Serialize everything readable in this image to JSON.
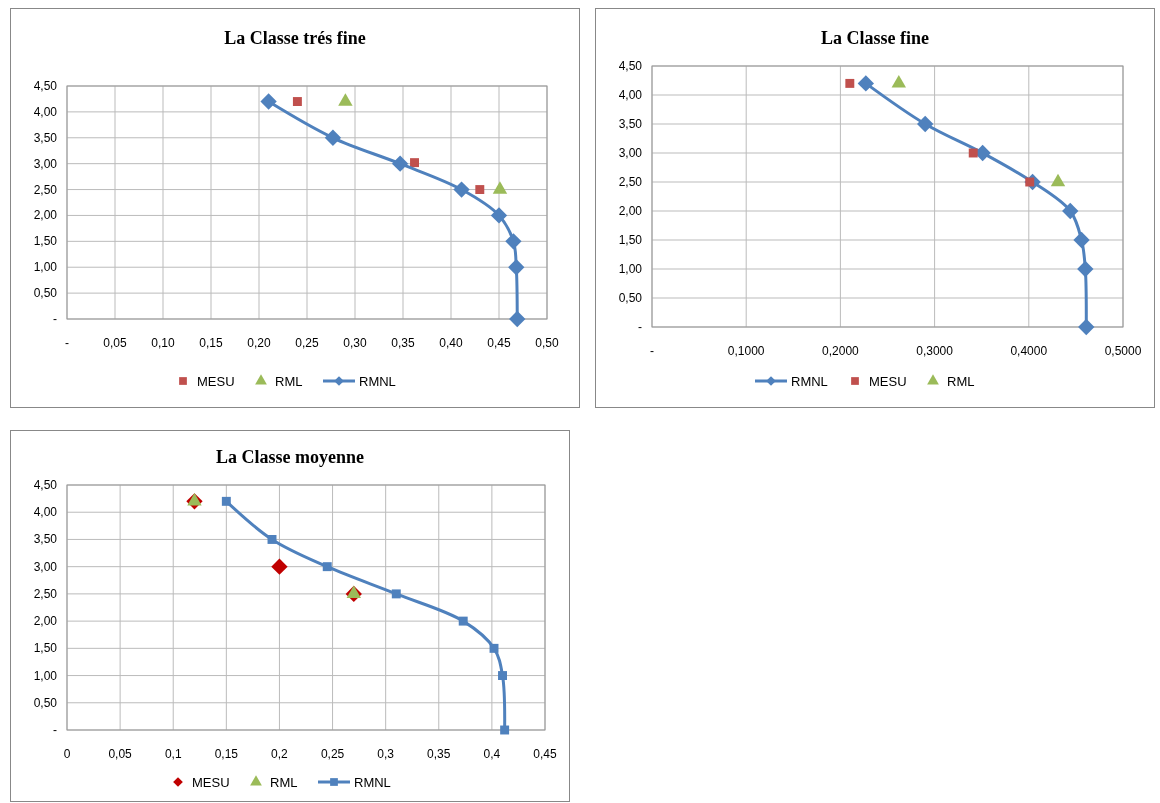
{
  "chart_data": [
    {
      "type": "scatter",
      "title": "La Classe trés fine",
      "xlim": [
        0,
        0.5
      ],
      "ylim": [
        0,
        4.5
      ],
      "xticks": [
        {
          "value": 0,
          "label": "-"
        },
        {
          "value": 0.05,
          "label": "0,05"
        },
        {
          "value": 0.1,
          "label": "0,10"
        },
        {
          "value": 0.15,
          "label": "0,15"
        },
        {
          "value": 0.2,
          "label": "0,20"
        },
        {
          "value": 0.25,
          "label": "0,25"
        },
        {
          "value": 0.3,
          "label": "0,30"
        },
        {
          "value": 0.35,
          "label": "0,35"
        },
        {
          "value": 0.4,
          "label": "0,40"
        },
        {
          "value": 0.45,
          "label": "0,45"
        },
        {
          "value": 0.5,
          "label": "0,50"
        }
      ],
      "yticks": [
        {
          "value": 0,
          "label": "-"
        },
        {
          "value": 0.5,
          "label": "0,50"
        },
        {
          "value": 1,
          "label": "1,00"
        },
        {
          "value": 1.5,
          "label": "1,50"
        },
        {
          "value": 2,
          "label": "2,00"
        },
        {
          "value": 2.5,
          "label": "2,50"
        },
        {
          "value": 3,
          "label": "3,00"
        },
        {
          "value": 3.5,
          "label": "3,50"
        },
        {
          "value": 4,
          "label": "4,00"
        },
        {
          "value": 4.5,
          "label": "4,50"
        }
      ],
      "grid": true,
      "legend": "bottom",
      "series": [
        {
          "name": "MESU",
          "marker": "square",
          "color": "#c0504d",
          "x": [
            0.24,
            0.362,
            0.43
          ],
          "values": [
            4.2,
            3.02,
            2.5
          ]
        },
        {
          "name": "RML",
          "marker": "triangle",
          "color": "#9bbb59",
          "x": [
            0.29,
            0.451
          ],
          "values": [
            4.2,
            2.5
          ]
        },
        {
          "name": "RMNL",
          "type": "line",
          "marker": "diamond",
          "color": "#4f81bd",
          "x": [
            0.21,
            0.277,
            0.347,
            0.411,
            0.45,
            0.465,
            0.468,
            0.469
          ],
          "values": [
            4.2,
            3.5,
            3.0,
            2.5,
            2.0,
            1.5,
            1.0,
            0
          ]
        }
      ]
    },
    {
      "type": "scatter",
      "title": "La Classe fine",
      "xlim": [
        0,
        0.5
      ],
      "ylim": [
        0,
        4.5
      ],
      "xticks": [
        {
          "value": 0,
          "label": "-"
        },
        {
          "value": 0.1,
          "label": "0,1000"
        },
        {
          "value": 0.2,
          "label": "0,2000"
        },
        {
          "value": 0.3,
          "label": "0,3000"
        },
        {
          "value": 0.4,
          "label": "0,4000"
        },
        {
          "value": 0.5,
          "label": "0,5000"
        }
      ],
      "yticks": [
        {
          "value": 0,
          "label": "-"
        },
        {
          "value": 0.5,
          "label": "0,50"
        },
        {
          "value": 1,
          "label": "1,00"
        },
        {
          "value": 1.5,
          "label": "1,50"
        },
        {
          "value": 2,
          "label": "2,00"
        },
        {
          "value": 2.5,
          "label": "2,50"
        },
        {
          "value": 3,
          "label": "3,00"
        },
        {
          "value": 3.5,
          "label": "3,50"
        },
        {
          "value": 4,
          "label": "4,00"
        },
        {
          "value": 4.5,
          "label": "4,50"
        }
      ],
      "grid": true,
      "legend": "bottom",
      "series": [
        {
          "name": "RMNL",
          "type": "line",
          "marker": "diamond",
          "color": "#4f81bd",
          "x": [
            0.227,
            0.29,
            0.351,
            0.404,
            0.444,
            0.456,
            0.46,
            0.461
          ],
          "values": [
            4.2,
            3.5,
            3.0,
            2.5,
            2.0,
            1.5,
            1.0,
            0
          ]
        },
        {
          "name": "MESU",
          "marker": "square",
          "color": "#c0504d",
          "x": [
            0.21,
            0.341,
            0.401
          ],
          "values": [
            4.2,
            3.0,
            2.5
          ]
        },
        {
          "name": "RML",
          "marker": "triangle",
          "color": "#9bbb59",
          "x": [
            0.262,
            0.431
          ],
          "values": [
            4.2,
            2.5
          ]
        }
      ]
    },
    {
      "type": "scatter",
      "title": "La Classe moyenne",
      "xlim": [
        0,
        0.45
      ],
      "ylim": [
        0,
        4.5
      ],
      "xticks": [
        0,
        {
          "value": 0.05,
          "label": "0,05"
        },
        {
          "value": 0.1,
          "label": "0,1"
        },
        {
          "value": 0.15,
          "label": "0,15"
        },
        {
          "value": 0.2,
          "label": "0,2"
        },
        {
          "value": 0.25,
          "label": "0,25"
        },
        {
          "value": 0.3,
          "label": "0,3"
        },
        {
          "value": 0.35,
          "label": "0,35"
        },
        {
          "value": 0.4,
          "label": "0,4"
        },
        {
          "value": 0.45,
          "label": "0,45"
        }
      ],
      "yticks": [
        {
          "value": 0,
          "label": "-"
        },
        {
          "value": 0.5,
          "label": "0,50"
        },
        {
          "value": 1,
          "label": "1,00"
        },
        {
          "value": 1.5,
          "label": "1,50"
        },
        {
          "value": 2,
          "label": "2,00"
        },
        {
          "value": 2.5,
          "label": "2,50"
        },
        {
          "value": 3,
          "label": "3,00"
        },
        {
          "value": 3.5,
          "label": "3,50"
        },
        {
          "value": 4,
          "label": "4,00"
        },
        {
          "value": 4.5,
          "label": "4,50"
        }
      ],
      "grid": true,
      "legend": "bottom",
      "series": [
        {
          "name": "MESU",
          "marker": "diamond",
          "color": "#c00000",
          "x": [
            0.12,
            0.2,
            0.27
          ],
          "values": [
            4.2,
            3.0,
            2.5
          ]
        },
        {
          "name": "RML",
          "marker": "triangle",
          "color": "#9bbb59",
          "x": [
            0.12,
            0.27
          ],
          "values": [
            4.2,
            2.5
          ]
        },
        {
          "name": "RMNL",
          "type": "line",
          "marker": "square",
          "color": "#4f81bd",
          "x": [
            0.15,
            0.193,
            0.245,
            0.31,
            0.373,
            0.402,
            0.41,
            0.412
          ],
          "values": [
            4.2,
            3.5,
            3.0,
            2.5,
            2.0,
            1.5,
            1.0,
            0
          ]
        }
      ]
    }
  ]
}
